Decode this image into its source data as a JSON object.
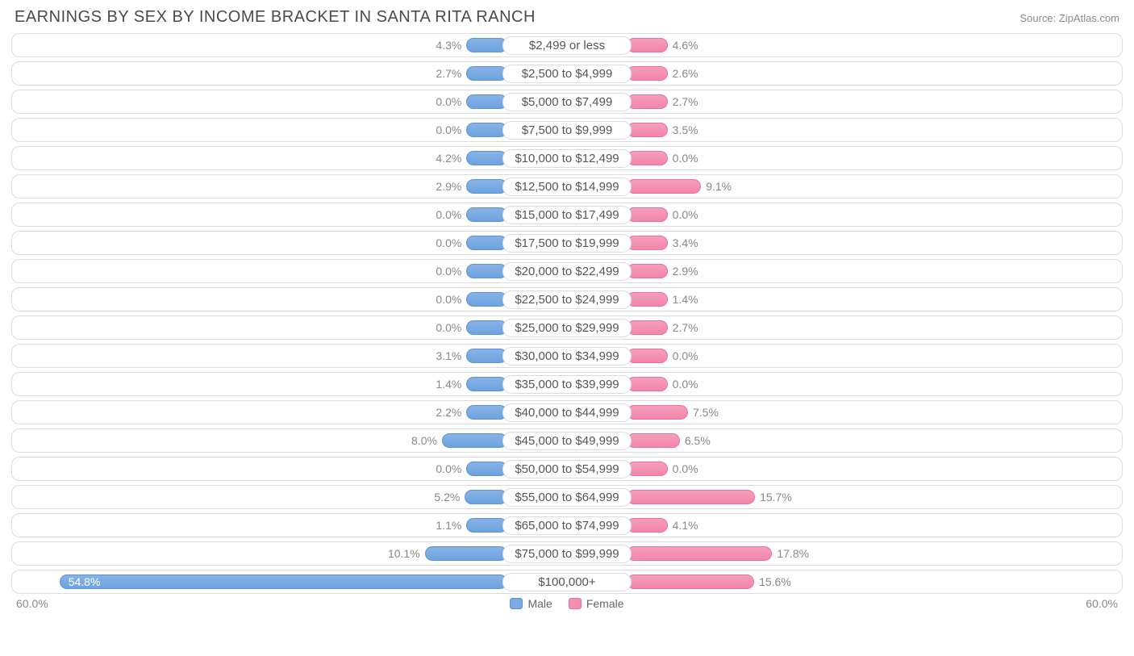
{
  "title": "EARNINGS BY SEX BY INCOME BRACKET IN SANTA RITA RANCH",
  "source": "Source: ZipAtlas.com",
  "chart": {
    "type": "diverging-bar",
    "axis_max": 60.0,
    "axis_label_left": "60.0%",
    "axis_label_right": "60.0%",
    "min_bar_pct": 5.0,
    "colors": {
      "male_fill_top": "#87b3e6",
      "male_fill_bottom": "#6ea3df",
      "male_border": "#5a93d6",
      "female_fill_top": "#f59ebb",
      "female_fill_bottom": "#f286aa",
      "female_border": "#ee6f9a",
      "track_border": "#dcdcdc",
      "text": "#888888",
      "title": "#4a4a4a",
      "background": "#ffffff"
    },
    "legend": [
      {
        "key": "male",
        "label": "Male"
      },
      {
        "key": "female",
        "label": "Female"
      }
    ],
    "rows": [
      {
        "label": "$2,499 or less",
        "male": 4.3,
        "female": 4.6
      },
      {
        "label": "$2,500 to $4,999",
        "male": 2.7,
        "female": 2.6
      },
      {
        "label": "$5,000 to $7,499",
        "male": 0.0,
        "female": 2.7
      },
      {
        "label": "$7,500 to $9,999",
        "male": 0.0,
        "female": 3.5
      },
      {
        "label": "$10,000 to $12,499",
        "male": 4.2,
        "female": 0.0
      },
      {
        "label": "$12,500 to $14,999",
        "male": 2.9,
        "female": 9.1
      },
      {
        "label": "$15,000 to $17,499",
        "male": 0.0,
        "female": 0.0
      },
      {
        "label": "$17,500 to $19,999",
        "male": 0.0,
        "female": 3.4
      },
      {
        "label": "$20,000 to $22,499",
        "male": 0.0,
        "female": 2.9
      },
      {
        "label": "$22,500 to $24,999",
        "male": 0.0,
        "female": 1.4
      },
      {
        "label": "$25,000 to $29,999",
        "male": 0.0,
        "female": 2.7
      },
      {
        "label": "$30,000 to $34,999",
        "male": 3.1,
        "female": 0.0
      },
      {
        "label": "$35,000 to $39,999",
        "male": 1.4,
        "female": 0.0
      },
      {
        "label": "$40,000 to $44,999",
        "male": 2.2,
        "female": 7.5
      },
      {
        "label": "$45,000 to $49,999",
        "male": 8.0,
        "female": 6.5
      },
      {
        "label": "$50,000 to $54,999",
        "male": 0.0,
        "female": 0.0
      },
      {
        "label": "$55,000 to $64,999",
        "male": 5.2,
        "female": 15.7
      },
      {
        "label": "$65,000 to $74,999",
        "male": 1.1,
        "female": 4.1
      },
      {
        "label": "$75,000 to $99,999",
        "male": 10.1,
        "female": 17.8
      },
      {
        "label": "$100,000+",
        "male": 54.8,
        "female": 15.6,
        "male_label_inside": true
      }
    ]
  }
}
